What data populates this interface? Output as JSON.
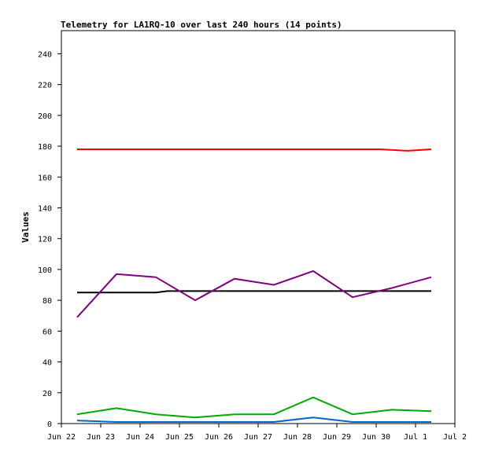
{
  "chart_data": {
    "type": "line",
    "title": "Telemetry for LA1RQ-10 over last 240 hours (14 points)",
    "xlabel": "",
    "ylabel": "Values",
    "ylim": [
      0,
      255
    ],
    "yticks": [
      0,
      20,
      40,
      60,
      80,
      100,
      120,
      140,
      160,
      180,
      200,
      220,
      240
    ],
    "x_ticks": [
      "Jun 22",
      "Jun 23",
      "Jun 24",
      "Jun 25",
      "Jun 26",
      "Jun 27",
      "Jun 28",
      "Jun 29",
      "Jun 30",
      "Jul 1",
      "Jul 2"
    ],
    "grid": false,
    "legend": "none",
    "series": [
      {
        "color": "#ff0000",
        "points": [
          [
            0.4,
            178
          ],
          [
            1.4,
            178
          ],
          [
            2.4,
            178
          ],
          [
            3.4,
            178
          ],
          [
            4.4,
            178
          ],
          [
            5.4,
            178
          ],
          [
            6.4,
            178
          ],
          [
            7.4,
            178
          ],
          [
            8.1,
            178
          ],
          [
            8.8,
            177
          ],
          [
            9.4,
            178
          ]
        ]
      },
      {
        "color": "#000000",
        "points": [
          [
            0.4,
            85
          ],
          [
            1.4,
            85
          ],
          [
            2.4,
            85
          ],
          [
            2.7,
            86
          ],
          [
            3.4,
            86
          ],
          [
            4.4,
            86
          ],
          [
            5.4,
            86
          ],
          [
            6.4,
            86
          ],
          [
            7.4,
            86
          ],
          [
            8.4,
            86
          ],
          [
            9.4,
            86
          ]
        ]
      },
      {
        "color": "#800080",
        "points": [
          [
            0.4,
            69
          ],
          [
            1.4,
            97
          ],
          [
            2.4,
            95
          ],
          [
            3.4,
            80
          ],
          [
            4.4,
            94
          ],
          [
            5.4,
            90
          ],
          [
            6.4,
            99
          ],
          [
            7.4,
            82
          ],
          [
            8.4,
            88
          ],
          [
            9.4,
            95
          ]
        ]
      },
      {
        "color": "#00aa00",
        "points": [
          [
            0.4,
            6
          ],
          [
            1.4,
            10
          ],
          [
            2.4,
            6
          ],
          [
            3.4,
            4
          ],
          [
            4.4,
            6
          ],
          [
            5.4,
            6
          ],
          [
            6.4,
            17
          ],
          [
            7.4,
            6
          ],
          [
            8.4,
            9
          ],
          [
            9.4,
            8
          ]
        ]
      },
      {
        "color": "#0066cc",
        "points": [
          [
            0.4,
            2
          ],
          [
            1.4,
            1
          ],
          [
            2.4,
            1
          ],
          [
            3.4,
            1
          ],
          [
            4.4,
            1
          ],
          [
            5.4,
            1
          ],
          [
            6.4,
            4
          ],
          [
            7.4,
            1
          ],
          [
            8.4,
            1
          ],
          [
            9.4,
            1
          ]
        ]
      }
    ]
  }
}
